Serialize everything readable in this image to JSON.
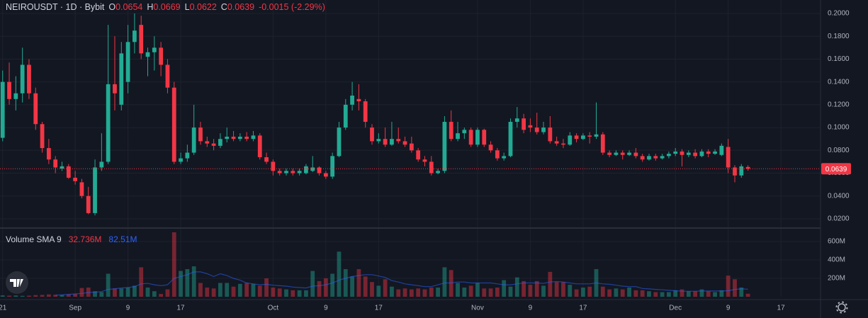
{
  "chart_data": {
    "type": "candlestick",
    "header": {
      "symbol": "NEIROUSDT · 1D · Bybit",
      "fields": [
        {
          "label": "O",
          "value": "0.0654"
        },
        {
          "label": "H",
          "value": "0.0669"
        },
        {
          "label": "L",
          "value": "0.0622"
        },
        {
          "label": "C",
          "value": "0.0639"
        }
      ],
      "change": "-0.0015 (-2.29%)"
    },
    "up_color": "#22ab94",
    "down_color": "#f23645",
    "xlim": [
      -0.4,
      124
    ],
    "xticks": [
      {
        "value": 0,
        "label": "21"
      },
      {
        "value": 11,
        "label": "Sep"
      },
      {
        "value": 19,
        "label": "9"
      },
      {
        "value": 27,
        "label": "17"
      },
      {
        "value": 41,
        "label": "Oct"
      },
      {
        "value": 49,
        "label": "9"
      },
      {
        "value": 57,
        "label": "17"
      },
      {
        "value": 72,
        "label": "Nov"
      },
      {
        "value": 80,
        "label": "9"
      },
      {
        "value": 88,
        "label": "17"
      },
      {
        "value": 102,
        "label": "Dec"
      },
      {
        "value": 110,
        "label": "9"
      },
      {
        "value": 118,
        "label": "17"
      }
    ],
    "ylim": [
      0.0119,
      0.2118
    ],
    "yticks": [
      {
        "value": 0.02,
        "label": "0.0200"
      },
      {
        "value": 0.04,
        "label": "0.0400"
      },
      {
        "value": 0.06,
        "label": "0.0600"
      },
      {
        "value": 0.08,
        "label": "0.0800"
      },
      {
        "value": 0.1,
        "label": "0.1000"
      },
      {
        "value": 0.12,
        "label": "0.1200"
      },
      {
        "value": 0.14,
        "label": "0.1400"
      },
      {
        "value": 0.16,
        "label": "0.1600"
      },
      {
        "value": 0.18,
        "label": "0.1800"
      },
      {
        "value": 0.2,
        "label": "0.2000"
      }
    ],
    "last_price": {
      "value": 0.0639,
      "label": "0.0639"
    },
    "ohlc": [
      [
        0.091,
        0.15,
        0.088,
        0.14
      ],
      [
        0.14,
        0.157,
        0.12,
        0.125
      ],
      [
        0.125,
        0.145,
        0.115,
        0.13
      ],
      [
        0.13,
        0.17,
        0.122,
        0.155
      ],
      [
        0.155,
        0.16,
        0.125,
        0.13
      ],
      [
        0.13,
        0.135,
        0.098,
        0.103
      ],
      [
        0.103,
        0.105,
        0.078,
        0.082
      ],
      [
        0.082,
        0.09,
        0.068,
        0.072
      ],
      [
        0.072,
        0.075,
        0.06,
        0.065
      ],
      [
        0.064,
        0.07,
        0.062,
        0.066
      ],
      [
        0.066,
        0.068,
        0.055,
        0.056
      ],
      [
        0.056,
        0.062,
        0.05,
        0.053
      ],
      [
        0.052,
        0.055,
        0.038,
        0.04
      ],
      [
        0.04,
        0.048,
        0.024,
        0.025
      ],
      [
        0.025,
        0.072,
        0.023,
        0.065
      ],
      [
        0.065,
        0.095,
        0.062,
        0.07
      ],
      [
        0.07,
        0.19,
        0.068,
        0.138
      ],
      [
        0.138,
        0.18,
        0.115,
        0.13
      ],
      [
        0.12,
        0.175,
        0.115,
        0.165
      ],
      [
        0.14,
        0.19,
        0.13,
        0.175
      ],
      [
        0.175,
        0.2,
        0.165,
        0.185
      ],
      [
        0.19,
        0.198,
        0.16,
        0.165
      ],
      [
        0.162,
        0.17,
        0.145,
        0.166
      ],
      [
        0.166,
        0.18,
        0.15,
        0.17
      ],
      [
        0.17,
        0.175,
        0.145,
        0.155
      ],
      [
        0.155,
        0.16,
        0.13,
        0.135
      ],
      [
        0.135,
        0.14,
        0.068,
        0.07
      ],
      [
        0.07,
        0.078,
        0.068,
        0.073
      ],
      [
        0.073,
        0.085,
        0.07,
        0.078
      ],
      [
        0.078,
        0.12,
        0.076,
        0.1
      ],
      [
        0.1,
        0.105,
        0.085,
        0.088
      ],
      [
        0.088,
        0.092,
        0.083,
        0.086
      ],
      [
        0.086,
        0.09,
        0.08,
        0.084
      ],
      [
        0.084,
        0.095,
        0.082,
        0.09
      ],
      [
        0.09,
        0.1,
        0.087,
        0.092
      ],
      [
        0.092,
        0.097,
        0.088,
        0.09
      ],
      [
        0.09,
        0.095,
        0.088,
        0.092
      ],
      [
        0.092,
        0.096,
        0.088,
        0.09
      ],
      [
        0.09,
        0.097,
        0.088,
        0.093
      ],
      [
        0.093,
        0.095,
        0.072,
        0.074
      ],
      [
        0.074,
        0.078,
        0.068,
        0.07
      ],
      [
        0.07,
        0.072,
        0.058,
        0.062
      ],
      [
        0.062,
        0.064,
        0.058,
        0.06
      ],
      [
        0.06,
        0.064,
        0.058,
        0.062
      ],
      [
        0.062,
        0.064,
        0.058,
        0.06
      ],
      [
        0.06,
        0.064,
        0.058,
        0.062
      ],
      [
        0.06,
        0.068,
        0.059,
        0.066
      ],
      [
        0.062,
        0.075,
        0.061,
        0.065
      ],
      [
        0.065,
        0.066,
        0.058,
        0.06
      ],
      [
        0.06,
        0.062,
        0.055,
        0.057
      ],
      [
        0.057,
        0.078,
        0.055,
        0.075
      ],
      [
        0.075,
        0.105,
        0.074,
        0.1
      ],
      [
        0.1,
        0.125,
        0.098,
        0.12
      ],
      [
        0.12,
        0.14,
        0.115,
        0.128
      ],
      [
        0.125,
        0.138,
        0.115,
        0.123
      ],
      [
        0.123,
        0.125,
        0.1,
        0.105
      ],
      [
        0.1,
        0.103,
        0.085,
        0.088
      ],
      [
        0.088,
        0.095,
        0.086,
        0.09
      ],
      [
        0.09,
        0.1,
        0.083,
        0.085
      ],
      [
        0.085,
        0.105,
        0.084,
        0.09
      ],
      [
        0.09,
        0.1,
        0.086,
        0.088
      ],
      [
        0.088,
        0.092,
        0.083,
        0.085
      ],
      [
        0.086,
        0.092,
        0.078,
        0.08
      ],
      [
        0.08,
        0.082,
        0.07,
        0.072
      ],
      [
        0.072,
        0.075,
        0.066,
        0.07
      ],
      [
        0.07,
        0.075,
        0.058,
        0.06
      ],
      [
        0.06,
        0.064,
        0.059,
        0.062
      ],
      [
        0.062,
        0.11,
        0.06,
        0.105
      ],
      [
        0.105,
        0.115,
        0.088,
        0.09
      ],
      [
        0.09,
        0.105,
        0.088,
        0.095
      ],
      [
        0.095,
        0.1,
        0.09,
        0.098
      ],
      [
        0.098,
        0.1,
        0.083,
        0.085
      ],
      [
        0.085,
        0.1,
        0.083,
        0.098
      ],
      [
        0.098,
        0.099,
        0.083,
        0.085
      ],
      [
        0.085,
        0.088,
        0.078,
        0.08
      ],
      [
        0.08,
        0.082,
        0.071,
        0.073
      ],
      [
        0.073,
        0.078,
        0.071,
        0.075
      ],
      [
        0.075,
        0.108,
        0.074,
        0.105
      ],
      [
        0.105,
        0.118,
        0.1,
        0.108
      ],
      [
        0.108,
        0.112,
        0.095,
        0.098
      ],
      [
        0.102,
        0.108,
        0.096,
        0.1
      ],
      [
        0.1,
        0.113,
        0.094,
        0.096
      ],
      [
        0.096,
        0.105,
        0.094,
        0.1
      ],
      [
        0.1,
        0.11,
        0.086,
        0.088
      ],
      [
        0.088,
        0.092,
        0.084,
        0.086
      ],
      [
        0.086,
        0.09,
        0.082,
        0.085
      ],
      [
        0.085,
        0.096,
        0.084,
        0.093
      ],
      [
        0.093,
        0.095,
        0.087,
        0.09
      ],
      [
        0.09,
        0.095,
        0.089,
        0.093
      ],
      [
        0.093,
        0.096,
        0.086,
        0.092
      ],
      [
        0.092,
        0.122,
        0.09,
        0.094
      ],
      [
        0.094,
        0.096,
        0.076,
        0.078
      ],
      [
        0.078,
        0.08,
        0.074,
        0.076
      ],
      [
        0.076,
        0.08,
        0.075,
        0.078
      ],
      [
        0.078,
        0.08,
        0.072,
        0.076
      ],
      [
        0.076,
        0.08,
        0.075,
        0.078
      ],
      [
        0.078,
        0.082,
        0.073,
        0.075
      ],
      [
        0.075,
        0.077,
        0.07,
        0.072
      ],
      [
        0.072,
        0.077,
        0.071,
        0.075
      ],
      [
        0.075,
        0.077,
        0.071,
        0.073
      ],
      [
        0.073,
        0.077,
        0.072,
        0.075
      ],
      [
        0.075,
        0.079,
        0.073,
        0.077
      ],
      [
        0.077,
        0.082,
        0.075,
        0.079
      ],
      [
        0.079,
        0.081,
        0.066,
        0.076
      ],
      [
        0.076,
        0.08,
        0.074,
        0.078
      ],
      [
        0.078,
        0.081,
        0.073,
        0.075
      ],
      [
        0.075,
        0.081,
        0.074,
        0.079
      ],
      [
        0.079,
        0.081,
        0.074,
        0.077
      ],
      [
        0.077,
        0.081,
        0.076,
        0.079
      ],
      [
        0.076,
        0.086,
        0.075,
        0.084
      ],
      [
        0.083,
        0.09,
        0.06,
        0.065
      ],
      [
        0.065,
        0.067,
        0.052,
        0.058
      ],
      [
        0.058,
        0.068,
        0.056,
        0.066
      ],
      [
        0.0654,
        0.0669,
        0.0622,
        0.0639
      ]
    ],
    "volume_panel": {
      "title": "Volume SMA 9",
      "last_volume_label": "32.736M",
      "last_sma_label": "82.51M",
      "sma_color": "#2962ff",
      "vlim": [
        0,
        746
      ],
      "vticks": [
        {
          "value": 200,
          "label": "200M"
        },
        {
          "value": 400,
          "label": "400M"
        },
        {
          "value": 600,
          "label": "600M"
        }
      ],
      "volume": [
        15,
        12,
        14,
        10,
        12,
        18,
        20,
        25,
        22,
        20,
        25,
        30,
        95,
        100,
        60,
        50,
        250,
        90,
        90,
        100,
        120,
        320,
        100,
        60,
        30,
        80,
        700,
        280,
        300,
        330,
        150,
        100,
        90,
        150,
        150,
        110,
        140,
        150,
        140,
        120,
        200,
        100,
        90,
        80,
        70,
        70,
        70,
        280,
        170,
        200,
        250,
        490,
        300,
        220,
        300,
        220,
        160,
        120,
        190,
        110,
        80,
        90,
        80,
        90,
        80,
        100,
        100,
        320,
        290,
        150,
        100,
        120,
        150,
        90,
        90,
        100,
        180,
        110,
        210,
        170,
        130,
        170,
        120,
        270,
        160,
        160,
        130,
        80,
        100,
        110,
        300,
        110,
        80,
        90,
        80,
        100,
        70,
        70,
        60,
        50,
        50,
        50,
        70,
        80,
        60,
        60,
        80,
        60,
        50,
        70,
        230,
        190,
        100,
        32.736
      ],
      "sma": [
        null,
        null,
        null,
        null,
        null,
        null,
        null,
        null,
        18,
        20,
        26,
        31,
        37,
        45,
        50,
        55,
        80,
        87,
        95,
        100,
        110,
        140,
        145,
        130,
        120,
        130,
        200,
        220,
        240,
        270,
        270,
        250,
        220,
        250,
        230,
        200,
        180,
        150,
        140,
        130,
        135,
        125,
        120,
        115,
        105,
        100,
        95,
        115,
        120,
        130,
        150,
        180,
        200,
        220,
        230,
        240,
        240,
        225,
        210,
        175,
        160,
        140,
        130,
        120,
        110,
        110,
        130,
        150,
        150,
        160,
        160,
        150,
        150,
        150,
        150,
        140,
        130,
        130,
        140,
        150,
        150,
        150,
        145,
        160,
        165,
        160,
        150,
        140,
        140,
        140,
        150,
        140,
        135,
        125,
        115,
        110,
        110,
        90,
        85,
        80,
        75,
        70,
        65,
        60,
        60,
        60,
        62,
        62,
        62,
        62,
        65,
        80,
        85,
        82.51
      ]
    }
  }
}
